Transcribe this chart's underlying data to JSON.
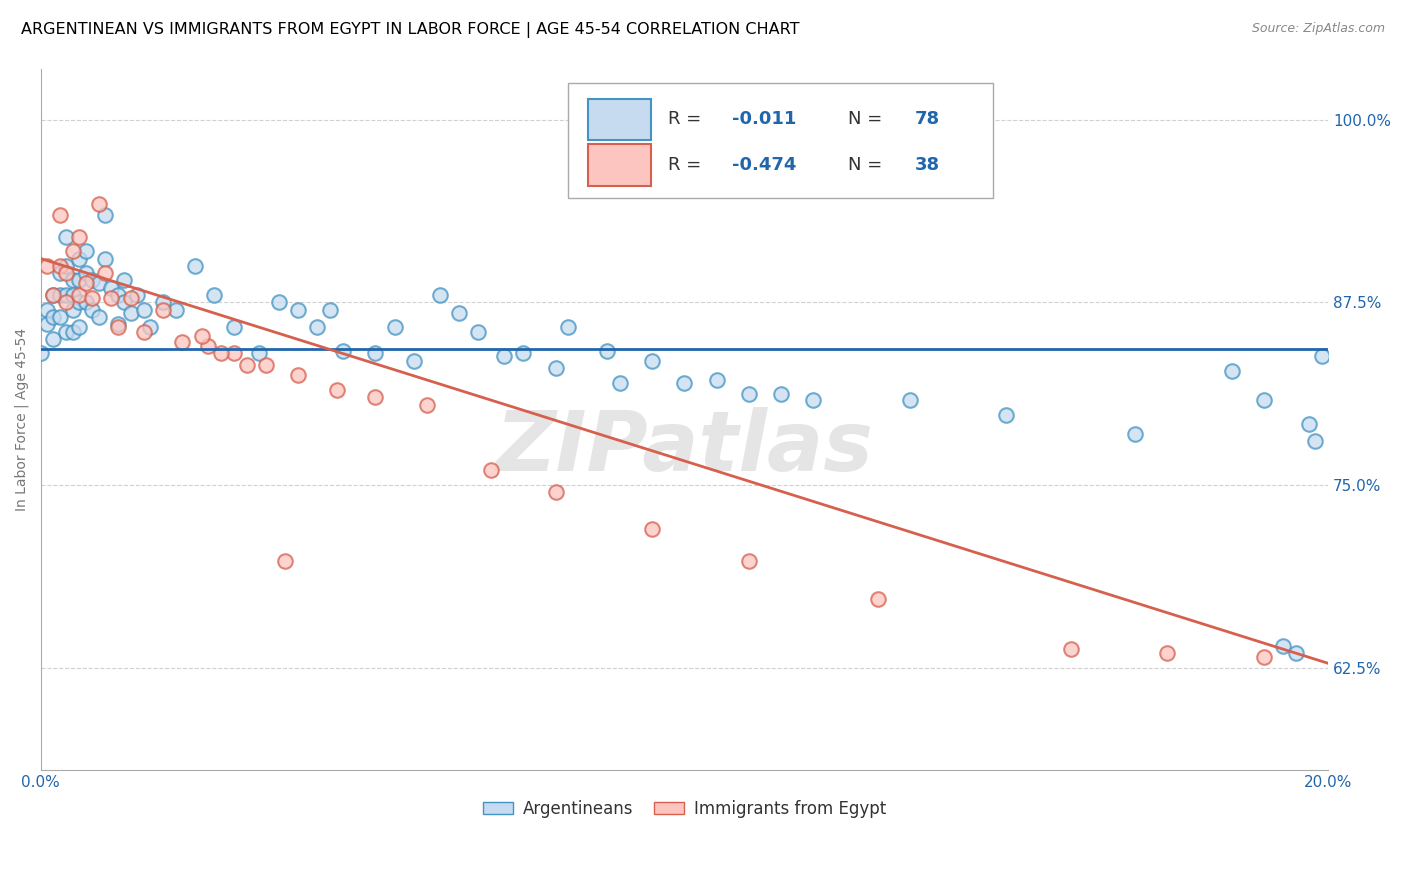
{
  "title": "ARGENTINEAN VS IMMIGRANTS FROM EGYPT IN LABOR FORCE | AGE 45-54 CORRELATION CHART",
  "source": "Source: ZipAtlas.com",
  "ylabel": "In Labor Force | Age 45-54",
  "xlim": [
    0.0,
    0.2
  ],
  "ylim": [
    0.555,
    1.035
  ],
  "yticks": [
    0.625,
    0.75,
    0.875,
    1.0
  ],
  "ytick_labels": [
    "62.5%",
    "75.0%",
    "87.5%",
    "100.0%"
  ],
  "xticks": [
    0.0,
    0.05,
    0.1,
    0.15,
    0.2
  ],
  "xtick_labels": [
    "0.0%",
    "",
    "",
    "",
    "20.0%"
  ],
  "blue_fill": "#c6dbef",
  "blue_edge": "#4393c3",
  "pink_fill": "#fcc5c0",
  "pink_edge": "#d6604d",
  "blue_line_color": "#2166ac",
  "pink_line_color": "#d6604d",
  "legend_text_color": "#2166ac",
  "watermark": "ZIPatlas",
  "blue_label": "Argentineans",
  "pink_label": "Immigrants from Egypt",
  "blue_R": "-0.011",
  "blue_N": "78",
  "pink_R": "-0.474",
  "pink_N": "38",
  "blue_line_y": 0.843,
  "pink_line_x0": 0.0,
  "pink_line_y0": 0.905,
  "pink_line_x1": 0.2,
  "pink_line_y1": 0.628,
  "blue_x": [
    0.0,
    0.001,
    0.001,
    0.002,
    0.002,
    0.002,
    0.003,
    0.003,
    0.003,
    0.004,
    0.004,
    0.004,
    0.004,
    0.005,
    0.005,
    0.005,
    0.005,
    0.006,
    0.006,
    0.006,
    0.006,
    0.007,
    0.007,
    0.007,
    0.008,
    0.008,
    0.009,
    0.009,
    0.01,
    0.01,
    0.011,
    0.012,
    0.012,
    0.013,
    0.013,
    0.014,
    0.015,
    0.016,
    0.017,
    0.019,
    0.021,
    0.024,
    0.027,
    0.03,
    0.034,
    0.037,
    0.04,
    0.043,
    0.047,
    0.052,
    0.058,
    0.065,
    0.072,
    0.08,
    0.09,
    0.1,
    0.11,
    0.12,
    0.135,
    0.15,
    0.17,
    0.185,
    0.19,
    0.193,
    0.195,
    0.197,
    0.198,
    0.199,
    0.045,
    0.055,
    0.062,
    0.068,
    0.075,
    0.082,
    0.088,
    0.095,
    0.105,
    0.115
  ],
  "blue_y": [
    0.84,
    0.87,
    0.86,
    0.88,
    0.865,
    0.85,
    0.895,
    0.88,
    0.865,
    0.92,
    0.9,
    0.88,
    0.855,
    0.89,
    0.88,
    0.87,
    0.855,
    0.905,
    0.89,
    0.875,
    0.858,
    0.91,
    0.895,
    0.875,
    0.89,
    0.87,
    0.888,
    0.865,
    0.935,
    0.905,
    0.885,
    0.88,
    0.86,
    0.89,
    0.875,
    0.868,
    0.88,
    0.87,
    0.858,
    0.875,
    0.87,
    0.9,
    0.88,
    0.858,
    0.84,
    0.875,
    0.87,
    0.858,
    0.842,
    0.84,
    0.835,
    0.868,
    0.838,
    0.83,
    0.82,
    0.82,
    0.812,
    0.808,
    0.808,
    0.798,
    0.785,
    0.828,
    0.808,
    0.64,
    0.635,
    0.792,
    0.78,
    0.838,
    0.87,
    0.858,
    0.88,
    0.855,
    0.84,
    0.858,
    0.842,
    0.835,
    0.822,
    0.812
  ],
  "pink_x": [
    0.001,
    0.002,
    0.003,
    0.003,
    0.004,
    0.004,
    0.005,
    0.006,
    0.006,
    0.007,
    0.008,
    0.009,
    0.01,
    0.011,
    0.012,
    0.014,
    0.016,
    0.019,
    0.022,
    0.026,
    0.03,
    0.035,
    0.04,
    0.046,
    0.052,
    0.06,
    0.07,
    0.08,
    0.095,
    0.11,
    0.13,
    0.16,
    0.175,
    0.19,
    0.025,
    0.028,
    0.032,
    0.038
  ],
  "pink_y": [
    0.9,
    0.88,
    0.935,
    0.9,
    0.895,
    0.875,
    0.91,
    0.88,
    0.92,
    0.888,
    0.878,
    0.942,
    0.895,
    0.878,
    0.858,
    0.878,
    0.855,
    0.87,
    0.848,
    0.845,
    0.84,
    0.832,
    0.825,
    0.815,
    0.81,
    0.805,
    0.76,
    0.745,
    0.72,
    0.698,
    0.672,
    0.638,
    0.635,
    0.632,
    0.852,
    0.84,
    0.832,
    0.698
  ],
  "marker_size": 110,
  "title_fontsize": 11.5,
  "source_fontsize": 9,
  "tick_fontsize": 11,
  "legend_fontsize": 13
}
